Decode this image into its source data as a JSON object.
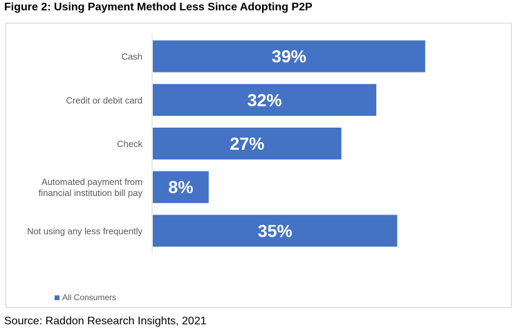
{
  "title": "Figure 2: Using Payment Method Less Since Adopting P2P",
  "source": "Source: Raddon Research Insights, 2021",
  "chart_data": {
    "type": "bar",
    "orientation": "horizontal",
    "categories": [
      [
        "Cash"
      ],
      [
        "Credit or debit card"
      ],
      [
        "Check"
      ],
      [
        "Automated payment from",
        "financial institution bill pay"
      ],
      [
        "Not using any less frequently"
      ]
    ],
    "series": [
      {
        "name": "All Consumers",
        "values": [
          39,
          32,
          27,
          8,
          35
        ],
        "labels": [
          "39%",
          "32%",
          "27%",
          "8%",
          "35%"
        ]
      }
    ],
    "xlim": [
      0,
      50
    ],
    "grid": false,
    "legend": "bottom-left",
    "bar_color": "#4472C4",
    "label_color": "#ffffff",
    "category_label_color": "#595959"
  }
}
